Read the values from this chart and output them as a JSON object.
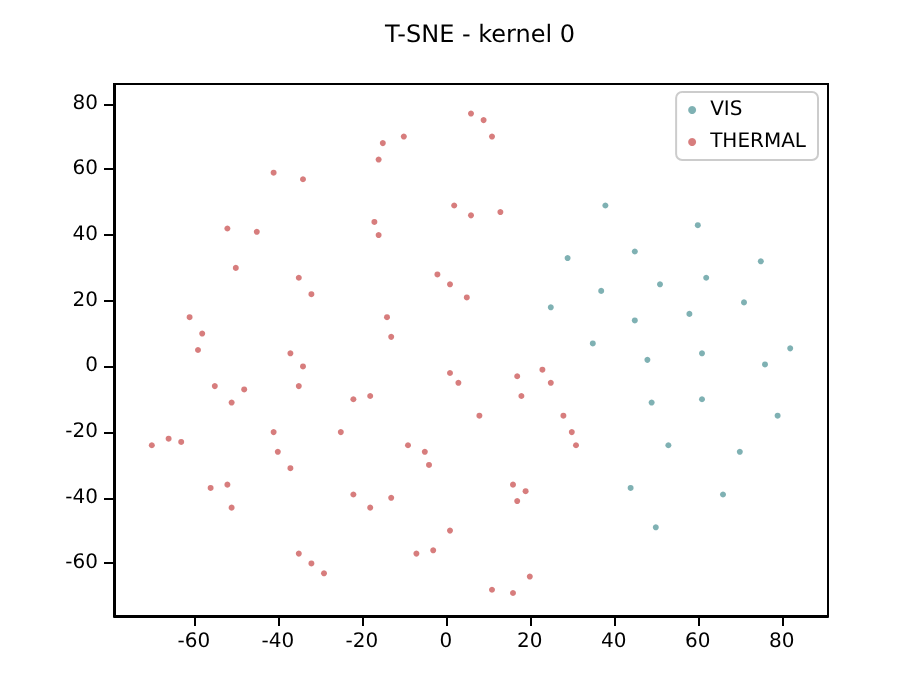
{
  "chart_data": {
    "type": "scatter",
    "title": "T-SNE - kernel 0",
    "xlim": [
      -79,
      91
    ],
    "ylim": [
      -76,
      86
    ],
    "xticks": [
      -60,
      -40,
      -20,
      0,
      20,
      40,
      60,
      80
    ],
    "yticks": [
      -60,
      -40,
      -20,
      0,
      20,
      40,
      60,
      80
    ],
    "grid": false,
    "legend": "top right",
    "marker": "circle",
    "series": [
      {
        "name": "VIS",
        "color": "#5f9ea0",
        "x": [
          38,
          60,
          29,
          45,
          75,
          37,
          51,
          62,
          25,
          45,
          58,
          71,
          35,
          48,
          61,
          76,
          82,
          49,
          61,
          79,
          53,
          70,
          44,
          66,
          50
        ],
        "values": [
          49,
          43,
          33,
          35,
          32,
          23,
          25,
          27,
          18,
          14,
          16,
          19.5,
          7,
          2,
          4,
          0.6,
          5.5,
          -11,
          -10,
          -15,
          -24,
          -26,
          -37,
          -39,
          -49
        ]
      },
      {
        "name": "THERMAL",
        "color": "#cd5c5c",
        "x": [
          -15,
          -10,
          -16,
          -41,
          -34,
          -17,
          -16,
          -52,
          -45,
          -50,
          -35,
          -32,
          -61,
          -58,
          -59,
          -14,
          -13,
          -37,
          -34,
          -35,
          -55,
          -51,
          -48,
          -22,
          -18,
          -70,
          -66,
          -63,
          -41,
          -40,
          -37,
          -25,
          -9,
          -5,
          -4,
          -56,
          -52,
          -51,
          -22,
          -18,
          -13,
          -7,
          -3,
          1,
          -35,
          -32,
          -29,
          6,
          9,
          11,
          2,
          6,
          13,
          1,
          5,
          -2,
          1,
          3,
          8,
          17,
          18,
          23,
          25,
          28,
          30,
          31,
          16,
          17,
          19,
          11,
          16,
          20
        ],
        "values": [
          68,
          70,
          63,
          59,
          57,
          44,
          40,
          42,
          41,
          30,
          27,
          22,
          15,
          10,
          5,
          15,
          9,
          4,
          0,
          -6,
          -6,
          -11,
          -7,
          -10,
          -9,
          -24,
          -22,
          -23,
          -20,
          -26,
          -31,
          -20,
          -24,
          -26,
          -30,
          -37,
          -36,
          -43,
          -39,
          -43,
          -40,
          -57,
          -56,
          -50,
          -57,
          -60,
          -63,
          77,
          75,
          70,
          49,
          46,
          47,
          25,
          21,
          28,
          -2,
          -5,
          -15,
          -3,
          -9,
          -1,
          -5,
          -15,
          -20,
          -24,
          -36,
          -41,
          -38,
          -68,
          -69,
          -64
        ]
      }
    ]
  }
}
